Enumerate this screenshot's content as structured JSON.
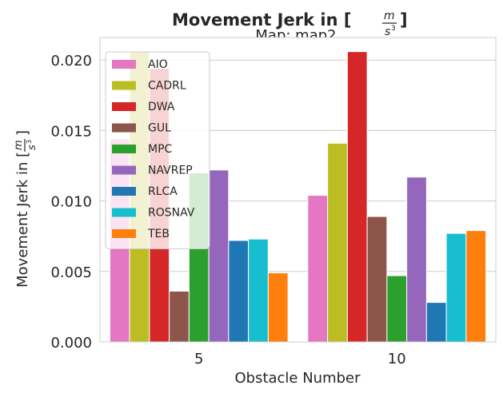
{
  "chart_data": {
    "type": "bar",
    "title": "Movement Jerk in [m/s³]",
    "title_plain": "Movement Jerk in [",
    "title_unit_num": "m",
    "title_unit_den": "s",
    "title_unit_exp": "3",
    "title_close": "]",
    "subtitle": "Map: map2",
    "xlabel": "Obstacle Number",
    "ylabel": "Movement Jerk in [m/s³]",
    "ylabel_plain": "Movement Jerk in [",
    "ylabel_unit_num": "m",
    "ylabel_unit_den": "s",
    "ylabel_unit_exp": "3",
    "ylabel_close": "]",
    "categories": [
      "5",
      "10"
    ],
    "ylim": [
      0,
      0.0216
    ],
    "yticks": [
      0,
      0.005,
      0.01,
      0.015,
      0.02
    ],
    "ytick_labels": [
      "0.000",
      "0.005",
      "0.010",
      "0.015",
      "0.020"
    ],
    "grid": true,
    "legend_position": "top-left",
    "series": [
      {
        "name": "AIO",
        "color": "#e377c2",
        "values": [
          0.0144,
          0.0104
        ]
      },
      {
        "name": "CADRL",
        "color": "#bcbd22",
        "values": [
          0.0206,
          0.0141
        ]
      },
      {
        "name": "DWA",
        "color": "#d62728",
        "values": [
          0.0194,
          0.0206
        ]
      },
      {
        "name": "GUL",
        "color": "#8c564b",
        "values": [
          0.0036,
          0.0089
        ]
      },
      {
        "name": "MPC",
        "color": "#2ca02c",
        "values": [
          0.012,
          0.0047
        ]
      },
      {
        "name": "NAVREP",
        "color": "#9467bd",
        "values": [
          0.0122,
          0.0117
        ]
      },
      {
        "name": "RLCA",
        "color": "#1f77b4",
        "values": [
          0.0072,
          0.0028
        ]
      },
      {
        "name": "ROSNAV",
        "color": "#17becf",
        "values": [
          0.0073,
          0.0077
        ]
      },
      {
        "name": "TEB",
        "color": "#ff7f0e",
        "values": [
          0.0049,
          0.0079
        ]
      }
    ]
  }
}
